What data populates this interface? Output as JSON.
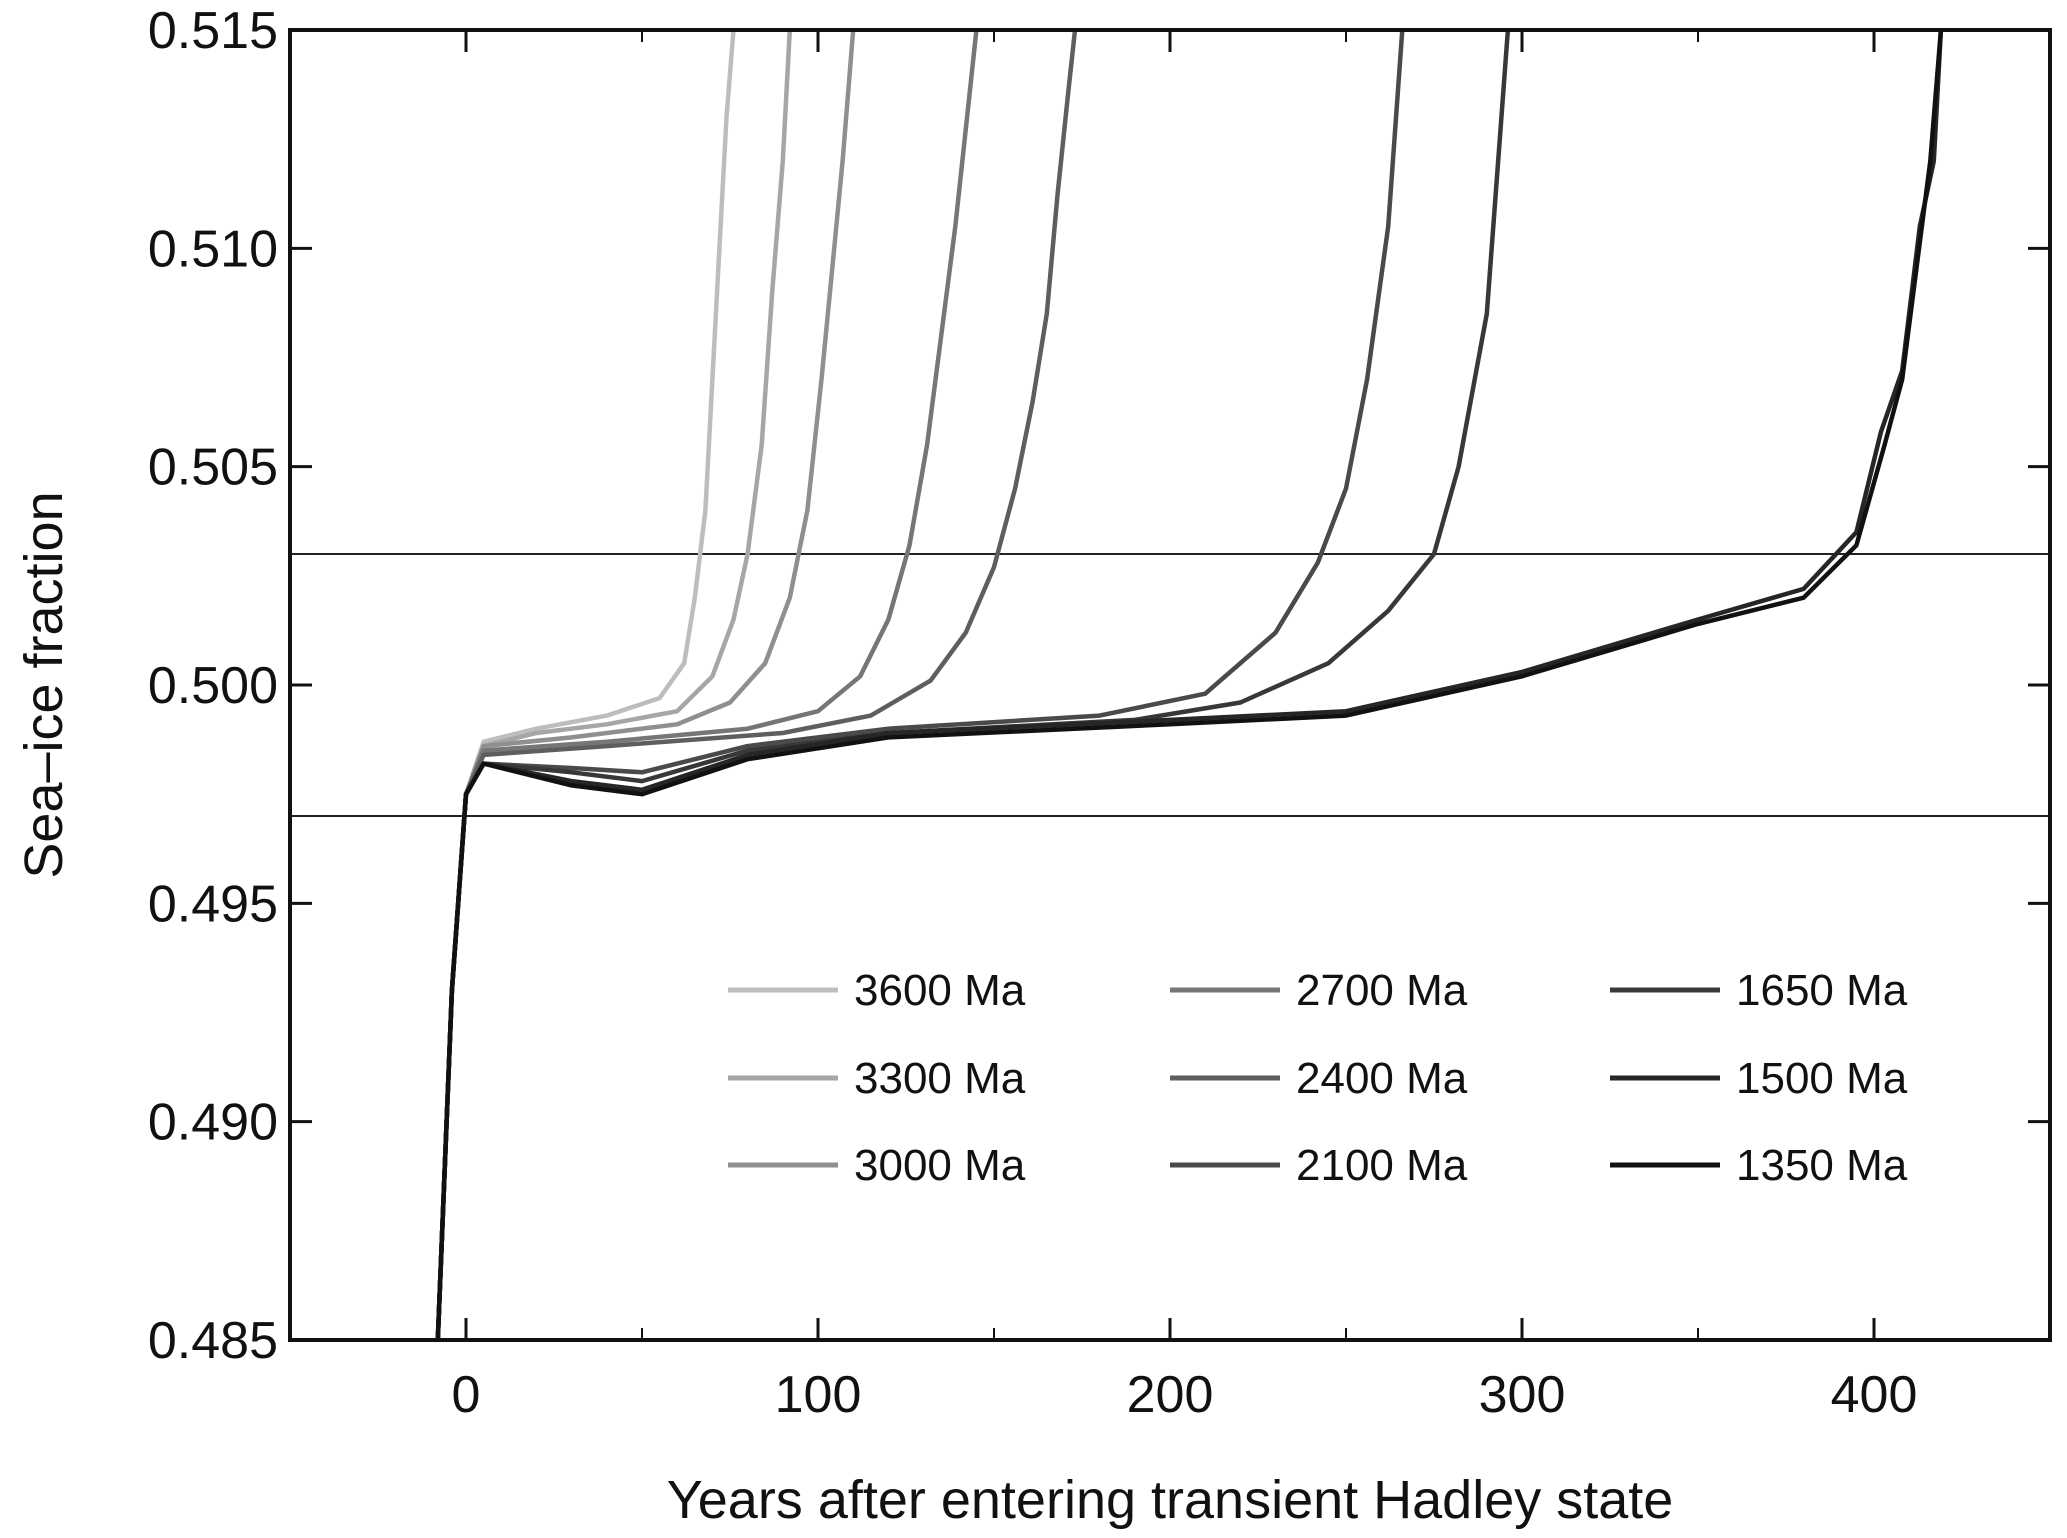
{
  "chart_data": {
    "type": "line",
    "title": "",
    "xlabel": "Years after entering transient Hadley state",
    "ylabel": "Sea–ice fraction",
    "xlim": [
      -50,
      450
    ],
    "ylim": [
      0.485,
      0.515
    ],
    "x_ticks": [
      0,
      100,
      200,
      300,
      400
    ],
    "x_tick_labels": [
      "0",
      "100",
      "200",
      "300",
      "400"
    ],
    "y_ticks": [
      0.485,
      0.49,
      0.495,
      0.5,
      0.505,
      0.51,
      0.515
    ],
    "y_tick_labels": [
      "0.485",
      "0.490",
      "0.495",
      "0.500",
      "0.505",
      "0.510",
      "0.515"
    ],
    "reference_lines": [
      0.503,
      0.497
    ],
    "grid": false,
    "legend_position": "lower-right",
    "series": [
      {
        "name": "3600 Ma",
        "color": "#bdbdbd",
        "x": [
          -8,
          -4,
          0,
          5,
          20,
          40,
          55,
          62,
          65,
          68,
          70,
          72,
          74,
          76
        ],
        "y": [
          0.485,
          0.493,
          0.4975,
          0.4987,
          0.499,
          0.4993,
          0.4997,
          0.5005,
          0.502,
          0.504,
          0.507,
          0.51,
          0.513,
          0.515
        ]
      },
      {
        "name": "3300 Ma",
        "color": "#a6a6a6",
        "x": [
          -8,
          -4,
          0,
          5,
          20,
          40,
          60,
          70,
          76,
          80,
          84,
          87,
          90,
          92
        ],
        "y": [
          0.485,
          0.493,
          0.4975,
          0.4986,
          0.4989,
          0.4991,
          0.4994,
          0.5002,
          0.5015,
          0.503,
          0.5055,
          0.509,
          0.512,
          0.515
        ]
      },
      {
        "name": "3000 Ma",
        "color": "#8f8f8f",
        "x": [
          -8,
          -4,
          0,
          5,
          30,
          60,
          75,
          85,
          92,
          97,
          101,
          104,
          107,
          110
        ],
        "y": [
          0.485,
          0.493,
          0.4975,
          0.4986,
          0.4988,
          0.4991,
          0.4996,
          0.5005,
          0.502,
          0.504,
          0.507,
          0.5095,
          0.512,
          0.515
        ]
      },
      {
        "name": "2700 Ma",
        "color": "#767676",
        "x": [
          -8,
          -4,
          0,
          5,
          40,
          80,
          100,
          112,
          120,
          126,
          131,
          135,
          139,
          143,
          145
        ],
        "y": [
          0.485,
          0.493,
          0.4975,
          0.4985,
          0.4987,
          0.499,
          0.4994,
          0.5002,
          0.5015,
          0.5032,
          0.5055,
          0.508,
          0.5105,
          0.5135,
          0.515
        ]
      },
      {
        "name": "2400 Ma",
        "color": "#5e5e5e",
        "x": [
          -8,
          -4,
          0,
          5,
          40,
          90,
          115,
          132,
          142,
          150,
          156,
          161,
          165,
          168,
          171,
          173
        ],
        "y": [
          0.485,
          0.493,
          0.4975,
          0.4984,
          0.4986,
          0.4989,
          0.4993,
          0.5001,
          0.5012,
          0.5027,
          0.5045,
          0.5065,
          0.5085,
          0.5112,
          0.5135,
          0.515
        ]
      },
      {
        "name": "2100 Ma",
        "color": "#4a4a4a",
        "x": [
          -8,
          -4,
          0,
          5,
          30,
          50,
          80,
          120,
          180,
          210,
          230,
          242,
          250,
          256,
          262,
          266
        ],
        "y": [
          0.485,
          0.493,
          0.4975,
          0.4982,
          0.4981,
          0.498,
          0.4986,
          0.499,
          0.4993,
          0.4998,
          0.5012,
          0.5028,
          0.5045,
          0.507,
          0.5105,
          0.515
        ]
      },
      {
        "name": "1650 Ma",
        "color": "#383838",
        "x": [
          -8,
          -4,
          0,
          5,
          30,
          50,
          80,
          120,
          190,
          220,
          245,
          262,
          275,
          282,
          290,
          296
        ],
        "y": [
          0.485,
          0.493,
          0.4975,
          0.4982,
          0.498,
          0.4978,
          0.4985,
          0.4989,
          0.4992,
          0.4996,
          0.5005,
          0.5017,
          0.503,
          0.505,
          0.5085,
          0.515
        ]
      },
      {
        "name": "1500 Ma",
        "color": "#262626",
        "x": [
          -8,
          -4,
          0,
          5,
          30,
          50,
          80,
          120,
          200,
          250,
          300,
          350,
          380,
          395,
          402,
          408,
          413,
          417,
          419
        ],
        "y": [
          0.485,
          0.493,
          0.4975,
          0.4982,
          0.4978,
          0.4976,
          0.4984,
          0.4989,
          0.4992,
          0.4994,
          0.5003,
          0.5015,
          0.5022,
          0.5035,
          0.5058,
          0.5072,
          0.5105,
          0.512,
          0.515
        ]
      },
      {
        "name": "1350 Ma",
        "color": "#111111",
        "x": [
          -8,
          -4,
          0,
          5,
          30,
          50,
          80,
          120,
          200,
          250,
          300,
          350,
          380,
          395,
          403,
          408,
          412,
          416,
          419
        ],
        "y": [
          0.485,
          0.493,
          0.4975,
          0.4982,
          0.4977,
          0.4975,
          0.4983,
          0.4988,
          0.4991,
          0.4993,
          0.5002,
          0.5014,
          0.502,
          0.5032,
          0.5055,
          0.507,
          0.5095,
          0.512,
          0.515
        ]
      }
    ]
  }
}
